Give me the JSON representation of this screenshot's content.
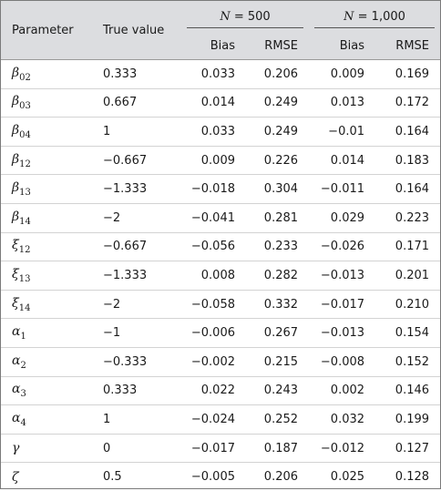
{
  "header": {
    "parameter": "Parameter",
    "true_value": "True value",
    "group1": {
      "n_label": "N",
      "n_value": " = 500"
    },
    "group2": {
      "n_label": "N",
      "n_value": " = 1,000"
    },
    "sub": {
      "bias": "Bias",
      "rmse": "RMSE"
    }
  },
  "rows": [
    {
      "sym": "β",
      "sub": "02",
      "true": "0.333",
      "bias500": "0.033",
      "rmse500": "0.206",
      "bias1000": "0.009",
      "rmse1000": "0.169"
    },
    {
      "sym": "β",
      "sub": "03",
      "true": "0.667",
      "bias500": "0.014",
      "rmse500": "0.249",
      "bias1000": "0.013",
      "rmse1000": "0.172"
    },
    {
      "sym": "β",
      "sub": "04",
      "true": "1",
      "bias500": "0.033",
      "rmse500": "0.249",
      "bias1000": "−0.01",
      "rmse1000": "0.164"
    },
    {
      "sym": "β",
      "sub": "12",
      "true": "−0.667",
      "bias500": "0.009",
      "rmse500": "0.226",
      "bias1000": "0.014",
      "rmse1000": "0.183"
    },
    {
      "sym": "β",
      "sub": "13",
      "true": "−1.333",
      "bias500": "−0.018",
      "rmse500": "0.304",
      "bias1000": "−0.011",
      "rmse1000": "0.164"
    },
    {
      "sym": "β",
      "sub": "14",
      "true": "−2",
      "bias500": "−0.041",
      "rmse500": "0.281",
      "bias1000": "0.029",
      "rmse1000": "0.223"
    },
    {
      "sym": "ξ",
      "sub": "12",
      "true": "−0.667",
      "bias500": "−0.056",
      "rmse500": "0.233",
      "bias1000": "−0.026",
      "rmse1000": "0.171"
    },
    {
      "sym": "ξ",
      "sub": "13",
      "true": "−1.333",
      "bias500": "0.008",
      "rmse500": "0.282",
      "bias1000": "−0.013",
      "rmse1000": "0.201"
    },
    {
      "sym": "ξ",
      "sub": "14",
      "true": "−2",
      "bias500": "−0.058",
      "rmse500": "0.332",
      "bias1000": "−0.017",
      "rmse1000": "0.210"
    },
    {
      "sym": "α",
      "sub": "1",
      "true": "−1",
      "bias500": "−0.006",
      "rmse500": "0.267",
      "bias1000": "−0.013",
      "rmse1000": "0.154"
    },
    {
      "sym": "α",
      "sub": "2",
      "true": "−0.333",
      "bias500": "−0.002",
      "rmse500": "0.215",
      "bias1000": "−0.008",
      "rmse1000": "0.152"
    },
    {
      "sym": "α",
      "sub": "3",
      "true": "0.333",
      "bias500": "0.022",
      "rmse500": "0.243",
      "bias1000": "0.002",
      "rmse1000": "0.146"
    },
    {
      "sym": "α",
      "sub": "4",
      "true": "1",
      "bias500": "−0.024",
      "rmse500": "0.252",
      "bias1000": "0.032",
      "rmse1000": "0.199"
    },
    {
      "sym": "γ",
      "sub": "",
      "true": "0",
      "bias500": "−0.017",
      "rmse500": "0.187",
      "bias1000": "−0.012",
      "rmse1000": "0.127"
    },
    {
      "sym": "ζ",
      "sub": "",
      "true": "0.5",
      "bias500": "−0.005",
      "rmse500": "0.206",
      "bias1000": "0.025",
      "rmse1000": "0.128"
    }
  ]
}
